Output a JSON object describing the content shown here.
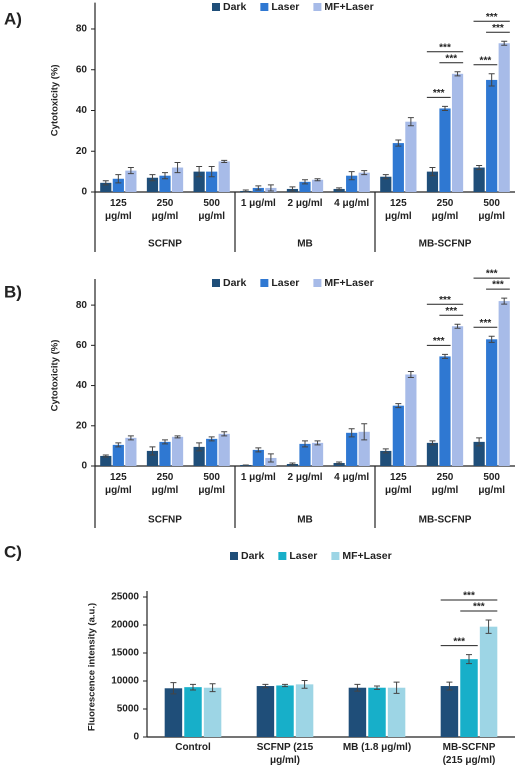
{
  "chart_data": [
    {
      "type": "bar",
      "panel_label": "A)",
      "ylabel": "Cytotoxicity (%)",
      "ylim": [
        0,
        90
      ],
      "yticks": [
        0,
        20,
        40,
        60,
        80
      ],
      "groups": [
        {
          "label": "SCFNP",
          "categories": [
            "125 μg/ml",
            "250 μg/ml",
            "500 μg/ml"
          ]
        },
        {
          "label": "MB",
          "categories": [
            "1 μg/ml",
            "2 μg/ml",
            "4 μg/ml"
          ]
        },
        {
          "label": "MB-SCFNP",
          "categories": [
            "125 μg/ml",
            "250 μg/ml",
            "500 μg/ml"
          ]
        }
      ],
      "series": [
        {
          "name": "Dark",
          "color": "#1f4e79",
          "values": [
            4.5,
            7,
            10,
            0.5,
            1.5,
            1.5,
            7.5,
            10,
            12
          ],
          "errors": [
            1,
            1.5,
            2.5,
            0.5,
            1,
            0.5,
            1,
            2,
            1
          ]
        },
        {
          "name": "Laser",
          "color": "#2f78d2",
          "values": [
            6.5,
            8,
            10,
            2,
            5,
            8,
            24,
            41,
            55
          ],
          "errors": [
            2,
            1.5,
            2.5,
            1,
            1,
            2,
            1.5,
            1,
            3
          ]
        },
        {
          "name": "MF+Laser",
          "color": "#a7bbe8",
          "values": [
            10.5,
            12,
            15,
            2,
            6,
            9.5,
            34.5,
            58,
            73
          ],
          "errors": [
            1.5,
            2.5,
            0.5,
            1.5,
            0.5,
            1,
            2,
            1,
            1
          ]
        }
      ],
      "annotations": [
        {
          "label": "***",
          "at": 7,
          "pair": [
            0,
            1
          ]
        },
        {
          "label": "***",
          "at": 7,
          "pair": [
            1,
            2
          ]
        },
        {
          "label": "***",
          "at": 7,
          "pair": [
            0,
            2
          ]
        },
        {
          "label": "***",
          "at": 8,
          "pair": [
            0,
            1
          ]
        },
        {
          "label": "***",
          "at": 8,
          "pair": [
            1,
            2
          ]
        },
        {
          "label": "***",
          "at": 8,
          "pair": [
            0,
            2
          ]
        }
      ]
    },
    {
      "type": "bar",
      "panel_label": "B)",
      "ylabel": "Cytotoxicity (%)",
      "ylim": [
        0,
        90
      ],
      "yticks": [
        0,
        20,
        40,
        60,
        80
      ],
      "groups": [
        {
          "label": "SCFNP",
          "categories": [
            "125 μg/ml",
            "250 μg/ml",
            "500 μg/ml"
          ]
        },
        {
          "label": "MB",
          "categories": [
            "1 μg/ml",
            "2 μg/ml",
            "4 μg/ml"
          ]
        },
        {
          "label": "MB-SCFNP",
          "categories": [
            "125 μg/ml",
            "250 μg/ml",
            "500 μg/ml"
          ]
        }
      ],
      "series": [
        {
          "name": "Dark",
          "color": "#1f4e79",
          "values": [
            5,
            7.5,
            9.5,
            0.5,
            1,
            1.5,
            7.5,
            11.5,
            12
          ],
          "errors": [
            0.5,
            2,
            2,
            0,
            0.5,
            0.5,
            1,
            1,
            2
          ]
        },
        {
          "name": "Laser",
          "color": "#2f78d2",
          "values": [
            10.5,
            12,
            13.5,
            8,
            11,
            16.5,
            30,
            54.5,
            63
          ],
          "errors": [
            1,
            1,
            1,
            1,
            1.5,
            2,
            1,
            1,
            1.5
          ]
        },
        {
          "name": "MF+Laser",
          "color": "#a7bbe8",
          "values": [
            14,
            14.5,
            16,
            4,
            11.5,
            17,
            45.5,
            69.5,
            82
          ],
          "errors": [
            1,
            0.5,
            1,
            2,
            1,
            4,
            1.5,
            1,
            1.5
          ]
        }
      ],
      "annotations": [
        {
          "label": "***",
          "at": 7,
          "pair": [
            0,
            1
          ]
        },
        {
          "label": "***",
          "at": 7,
          "pair": [
            1,
            2
          ]
        },
        {
          "label": "***",
          "at": 7,
          "pair": [
            0,
            2
          ]
        },
        {
          "label": "***",
          "at": 8,
          "pair": [
            0,
            1
          ]
        },
        {
          "label": "***",
          "at": 8,
          "pair": [
            1,
            2
          ]
        },
        {
          "label": "***",
          "at": 8,
          "pair": [
            0,
            2
          ]
        }
      ]
    },
    {
      "type": "bar",
      "panel_label": "C)",
      "ylabel": "Fluorescence intensity (a.u.)",
      "ylim": [
        0,
        25000
      ],
      "yticks": [
        0,
        5000,
        10000,
        15000,
        20000,
        25000
      ],
      "categories": [
        "Control",
        "SCFNP (215 μg/ml)",
        "MB (1.8 μg/ml)",
        "MB-SCFNP (215 μg/ml)"
      ],
      "series": [
        {
          "name": "Dark",
          "color": "#1f4e79",
          "values": [
            8700,
            9100,
            8800,
            9100
          ],
          "errors": [
            1000,
            300,
            600,
            700
          ]
        },
        {
          "name": "Laser",
          "color": "#17afc9",
          "values": [
            8900,
            9200,
            8800,
            13900
          ],
          "errors": [
            500,
            200,
            300,
            800
          ]
        },
        {
          "name": "MF+Laser",
          "color": "#9dd5e5",
          "values": [
            8800,
            9400,
            8800,
            19700
          ],
          "errors": [
            700,
            700,
            1000,
            1200
          ]
        }
      ],
      "annotations": [
        {
          "label": "***",
          "at": 3,
          "pair": [
            0,
            1
          ]
        },
        {
          "label": "***",
          "at": 3,
          "pair": [
            1,
            2
          ]
        },
        {
          "label": "***",
          "at": 3,
          "pair": [
            0,
            2
          ]
        }
      ]
    }
  ]
}
